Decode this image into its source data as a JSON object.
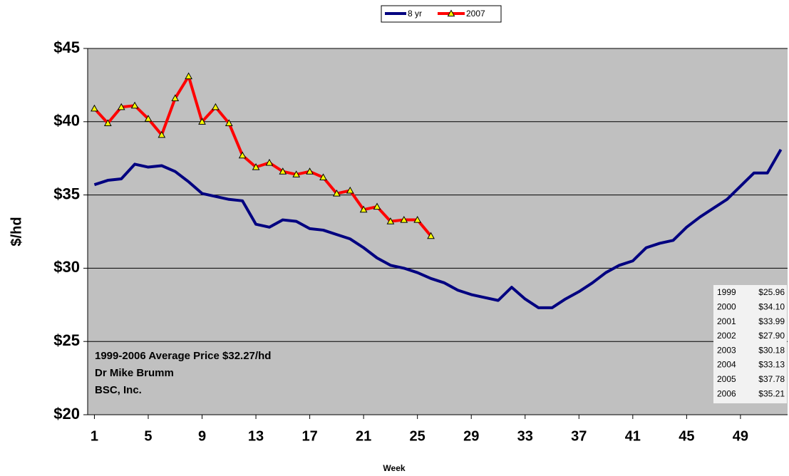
{
  "chart_data": {
    "type": "line",
    "x": [
      1,
      2,
      3,
      4,
      5,
      6,
      7,
      8,
      9,
      10,
      11,
      12,
      13,
      14,
      15,
      16,
      17,
      18,
      19,
      20,
      21,
      22,
      23,
      24,
      25,
      26,
      27,
      28,
      29,
      30,
      31,
      32,
      33,
      34,
      35,
      36,
      37,
      38,
      39,
      40,
      41,
      42,
      43,
      44,
      45,
      46,
      47,
      48,
      49,
      50,
      51,
      52
    ],
    "series": [
      {
        "name": "8 yr",
        "color": "#000080",
        "values": [
          35.7,
          36.0,
          36.1,
          37.1,
          36.9,
          37.0,
          36.6,
          35.9,
          35.1,
          34.9,
          34.7,
          34.6,
          33.0,
          32.8,
          33.3,
          33.2,
          32.7,
          32.6,
          32.3,
          32.0,
          31.4,
          30.7,
          30.2,
          30.0,
          29.7,
          29.3,
          29.0,
          28.5,
          28.2,
          28.0,
          27.8,
          28.7,
          27.9,
          27.3,
          27.3,
          27.9,
          28.4,
          29.0,
          29.7,
          30.2,
          30.5,
          31.4,
          31.7,
          31.9,
          32.8,
          33.5,
          34.1,
          34.7,
          35.6,
          36.5,
          36.5,
          38.1
        ]
      },
      {
        "name": "2007",
        "color": "#ff0000",
        "marker_color": "#ffff00",
        "values": [
          40.9,
          39.9,
          41.0,
          41.1,
          40.2,
          39.1,
          41.6,
          43.1,
          40.0,
          41.0,
          39.9,
          37.7,
          36.9,
          37.2,
          36.6,
          36.4,
          36.6,
          36.2,
          35.1,
          35.3,
          34.0,
          34.2,
          33.2,
          33.3,
          33.3,
          32.2,
          null,
          null,
          null,
          null,
          null,
          null,
          null,
          null,
          null,
          null,
          null,
          null,
          null,
          null,
          null,
          null,
          null,
          null,
          null,
          null,
          null,
          null,
          null,
          null,
          null,
          null
        ]
      }
    ],
    "xlim": [
      0.5,
      52.5
    ],
    "xticks": [
      1,
      5,
      9,
      13,
      17,
      21,
      25,
      29,
      33,
      37,
      41,
      45,
      49
    ],
    "ylim": [
      20,
      45
    ],
    "yticks": [
      {
        "value": 20,
        "label": "$20"
      },
      {
        "value": 25,
        "label": "$25"
      },
      {
        "value": 30,
        "label": "$30"
      },
      {
        "value": 35,
        "label": "$35"
      },
      {
        "value": 40,
        "label": "$40"
      },
      {
        "value": 45,
        "label": "$45"
      }
    ],
    "x_label": "Week",
    "y_label": "$/hd",
    "grid": true,
    "legend": "top",
    "annotations": [
      "1999-2006 Average Price $32.27/hd",
      "Dr Mike Brumm",
      "BSC, Inc."
    ],
    "table": [
      [
        "1999",
        "$25.96"
      ],
      [
        "2000",
        "$34.10"
      ],
      [
        "2001",
        "$33.99"
      ],
      [
        "2002",
        "$27.90"
      ],
      [
        "2003",
        "$30.18"
      ],
      [
        "2004",
        "$33.13"
      ],
      [
        "2005",
        "$37.78"
      ],
      [
        "2006",
        "$35.21"
      ]
    ]
  }
}
